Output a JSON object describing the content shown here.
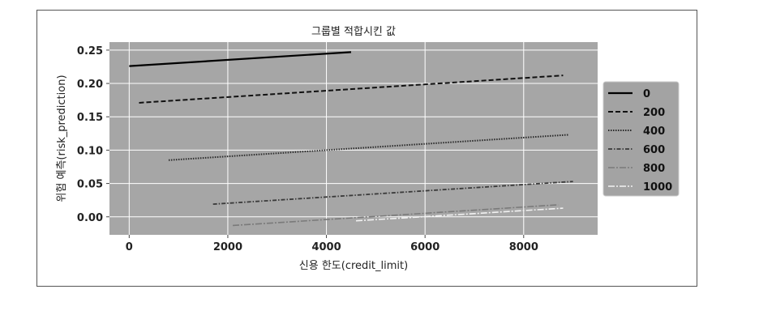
{
  "chart_data": {
    "type": "line",
    "title": "그룹별 적합시킨 값",
    "xlabel": "신용 한도(credit_limit)",
    "ylabel": "위험 예측(risk_prediction)",
    "xlim": [
      -400,
      9500
    ],
    "ylim": [
      -0.027,
      0.262
    ],
    "xticks": [
      0,
      2000,
      4000,
      6000,
      8000
    ],
    "xtick_labels": [
      "0",
      "2000",
      "4000",
      "6000",
      "8000"
    ],
    "yticks": [
      0.0,
      0.05,
      0.1,
      0.15,
      0.2,
      0.25
    ],
    "ytick_labels": [
      "0.00",
      "0.05",
      "0.10",
      "0.15",
      "0.20",
      "0.25"
    ],
    "grid": true,
    "background": "#a6a6a6",
    "legend_position": "right",
    "series": [
      {
        "name": "0",
        "x": [
          0,
          4500
        ],
        "y": [
          0.226,
          0.247
        ],
        "color": "#000000",
        "dash": "solid"
      },
      {
        "name": "200",
        "x": [
          200,
          8800
        ],
        "y": [
          0.171,
          0.212
        ],
        "color": "#111111",
        "dash": "dashed"
      },
      {
        "name": "400",
        "x": [
          800,
          8900
        ],
        "y": [
          0.085,
          0.123
        ],
        "color": "#2a2a2a",
        "dash": "dotted"
      },
      {
        "name": "600",
        "x": [
          1700,
          9000
        ],
        "y": [
          0.019,
          0.053
        ],
        "color": "#3a3a3a",
        "dash": "dashdot"
      },
      {
        "name": "800",
        "x": [
          2100,
          8700
        ],
        "y": [
          -0.013,
          0.018
        ],
        "color": "#7a7a7a",
        "dash": "dashdot-long"
      },
      {
        "name": "1000",
        "x": [
          4600,
          8800
        ],
        "y": [
          -0.006,
          0.013
        ],
        "color": "#f2f2f2",
        "dash": "dashdot-long"
      }
    ]
  }
}
